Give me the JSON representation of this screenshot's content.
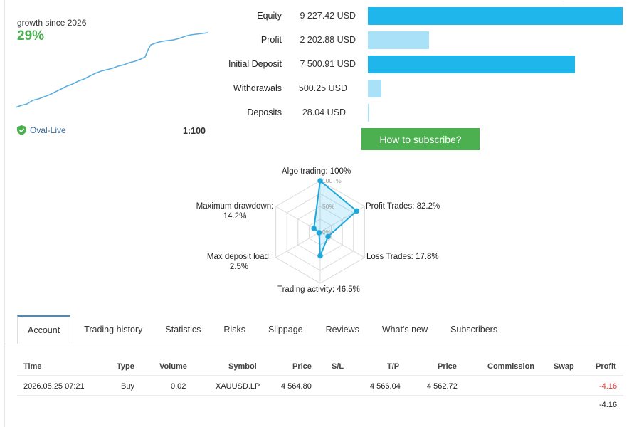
{
  "growth": {
    "title": "growth since 2026",
    "value": "29%",
    "account_name": "Oval-Live",
    "leverage": "1:100"
  },
  "financials": [
    {
      "label": "Equity",
      "value": "9 227.42 USD",
      "fraction": 1.0,
      "style": "dark"
    },
    {
      "label": "Profit",
      "value": "2 202.88 USD",
      "fraction": 0.239,
      "style": "light"
    },
    {
      "label": "Initial Deposit",
      "value": "7 500.91 USD",
      "fraction": 0.813,
      "style": "dark"
    },
    {
      "label": "Withdrawals",
      "value": "500.25 USD",
      "fraction": 0.054,
      "style": "light"
    },
    {
      "label": "Deposits",
      "value": "28.04 USD",
      "fraction": 0.003,
      "style": "light"
    }
  ],
  "subscribe_label": "How to subscribe?",
  "radar": {
    "ticks": [
      "100+%",
      "50%",
      "0%"
    ],
    "axes": [
      {
        "label": "Algo trading: 100%",
        "value": 100
      },
      {
        "label": "Profit Trades: 82.2%",
        "value": 82.2
      },
      {
        "label": "Loss Trades: 17.8%",
        "value": 17.8
      },
      {
        "label": "Trading activity: 46.5%",
        "value": 46.5
      },
      {
        "label_line1": "Max deposit load:",
        "label_line2": "2.5%",
        "value": 2.5
      },
      {
        "label_line1": "Maximum drawdown:",
        "label_line2": "14.2%",
        "value": 14.2
      }
    ]
  },
  "tabs": [
    "Account",
    "Trading history",
    "Statistics",
    "Risks",
    "Slippage",
    "Reviews",
    "What's new",
    "Subscribers"
  ],
  "table": {
    "headers": [
      "Time",
      "Type",
      "Volume",
      "Symbol",
      "Price",
      "S/L",
      "T/P",
      "Price",
      "Commission",
      "Swap",
      "Profit"
    ],
    "rows": [
      {
        "time": "2026.05.25 07:21",
        "type": "Buy",
        "volume": "0.02",
        "symbol": "XAUUSD.LP",
        "price_open": "4 564.80",
        "sl": "",
        "tp": "4 566.04",
        "price_current": "4 562.72",
        "commission": "",
        "swap": "",
        "profit": "-4.16"
      }
    ],
    "total_profit": "-4.16"
  },
  "colors": {
    "accent_blue": "#1fb6ec",
    "light_blue": "#a9e2f8",
    "green": "#4caf50",
    "negative": "#e53935"
  }
}
